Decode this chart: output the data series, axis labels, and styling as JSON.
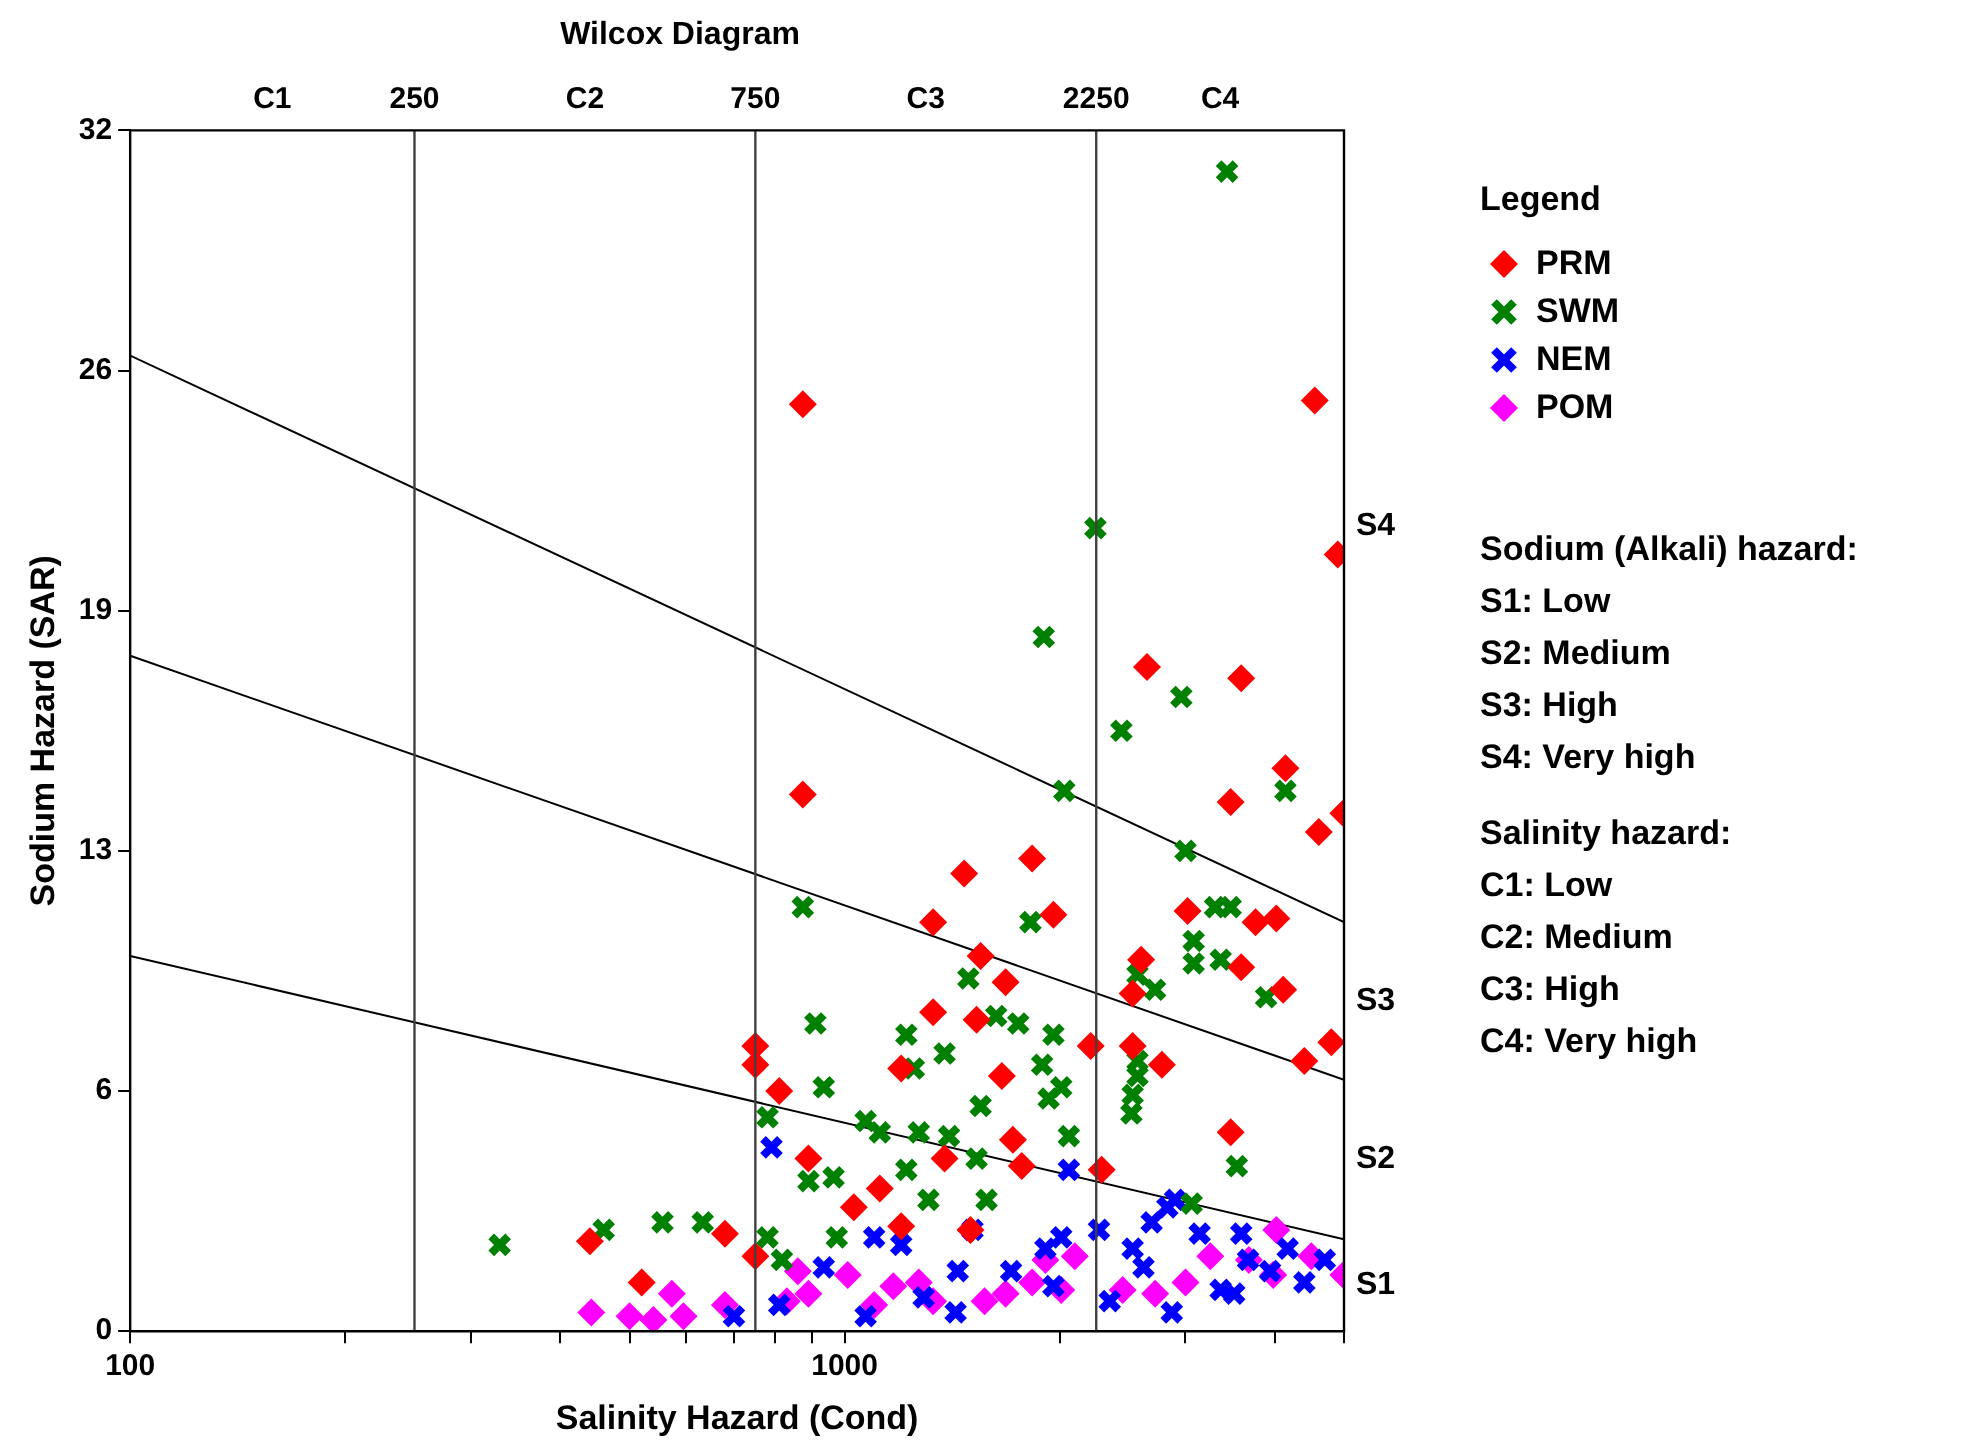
{
  "chart_data": {
    "type": "scatter",
    "title": "Wilcox Diagram",
    "xlabel": "Salinity Hazard (Cond)",
    "ylabel": "Sodium Hazard (SAR)",
    "legend_title": "Legend",
    "log": "x",
    "xlim": [
      100,
      5000
    ],
    "ylim": [
      0,
      32
    ],
    "xticks": [
      100,
      {
        "value": 200,
        "label": null
      },
      {
        "value": 300,
        "label": null
      },
      {
        "value": 400,
        "label": null
      },
      {
        "value": 500,
        "label": null
      },
      {
        "value": 600,
        "label": null
      },
      {
        "value": 700,
        "label": null
      },
      {
        "value": 800,
        "label": null
      },
      {
        "value": 900,
        "label": null
      },
      1000,
      {
        "value": 2000,
        "label": null
      },
      {
        "value": 3000,
        "label": null
      },
      {
        "value": 4000,
        "label": null
      },
      {
        "value": 5000,
        "label": null
      }
    ],
    "yticks": [
      0,
      {
        "value": 6.4,
        "label": "6"
      },
      {
        "value": 12.8,
        "label": "13"
      },
      {
        "value": 19.2,
        "label": "19"
      },
      {
        "value": 25.6,
        "label": "26"
      },
      32
    ],
    "grid": false,
    "legend": "top right",
    "ref_lines": [
      {
        "axis": "x",
        "value": 250,
        "label": "250",
        "color": "#404040"
      },
      {
        "axis": "x",
        "value": 750,
        "label": "750",
        "color": "#404040"
      },
      {
        "axis": "x",
        "value": 2250,
        "label": "2250",
        "color": "#404040"
      }
    ],
    "series": [
      {
        "name": "PRM",
        "color": "#ff0000",
        "marker": "diamond",
        "x": [
          874,
          4550,
          874,
          4900,
          2650,
          3590,
          1330,
          1470,
          1830,
          1550,
          1680,
          1330,
          1530,
          1200,
          1660,
          750,
          750,
          810,
          890,
          1380,
          1720,
          1770,
          1120,
          1030,
          1200,
          1500,
          680,
          750,
          3470,
          4610,
          4990,
          3020,
          1960,
          3760,
          4020,
          2600,
          2530,
          3590,
          4110,
          2210,
          2530,
          2780,
          4800,
          4400,
          3470,
          2290,
          440,
          520,
          4140
        ],
        "values": [
          24.7,
          24.8,
          14.3,
          20.7,
          17.7,
          17.4,
          10.9,
          12.2,
          12.6,
          10.0,
          9.3,
          8.5,
          8.3,
          7.0,
          6.8,
          7.6,
          7.1,
          6.4,
          4.6,
          4.6,
          5.1,
          4.4,
          3.8,
          3.3,
          2.8,
          2.7,
          2.6,
          2.0,
          14.1,
          13.3,
          13.8,
          11.2,
          11.1,
          10.9,
          11.0,
          9.9,
          9.0,
          9.7,
          9.1,
          7.6,
          7.6,
          7.1,
          7.7,
          7.2,
          5.3,
          4.3,
          2.4,
          1.3,
          15.0
        ]
      },
      {
        "name": "SWM",
        "color": "#008000",
        "marker": "cross",
        "x": [
          3430,
          2244,
          1900,
          2960,
          2440,
          2030,
          4140,
          874,
          1820,
          1490,
          1630,
          1750,
          910,
          1220,
          1380,
          1250,
          1890,
          935,
          780,
          1070,
          1120,
          1270,
          1400,
          1550,
          1530,
          1220,
          965,
          890,
          1310,
          1580,
          975,
          780,
          817,
          3000,
          3300,
          3470,
          3080,
          3360,
          3080,
          2570,
          2720,
          3890,
          1960,
          2010,
          1930,
          2570,
          2570,
          2530,
          2520,
          2060,
          3540,
          3060,
          329,
          460,
          556,
          633
        ],
        "values": [
          30.9,
          21.4,
          18.5,
          16.9,
          16.0,
          14.4,
          14.4,
          11.3,
          10.9,
          9.4,
          8.4,
          8.2,
          8.2,
          7.9,
          7.4,
          7.0,
          7.1,
          6.5,
          5.7,
          5.6,
          5.3,
          5.3,
          5.2,
          6.0,
          4.6,
          4.3,
          4.1,
          4.0,
          3.5,
          3.5,
          2.5,
          2.5,
          1.9,
          12.8,
          11.3,
          11.3,
          10.4,
          9.9,
          9.8,
          9.5,
          9.1,
          8.9,
          7.9,
          6.5,
          6.2,
          7.2,
          6.8,
          6.3,
          5.8,
          5.2,
          4.4,
          3.4,
          2.3,
          2.7,
          2.9,
          2.9
        ]
      },
      {
        "name": "NEM",
        "color": "#0000ff",
        "marker": "cross",
        "x": [
          790,
          2060,
          2900,
          1100,
          1200,
          935,
          1440,
          1510,
          1710,
          810,
          700,
          1430,
          1910,
          2270,
          2010,
          2690,
          2830,
          2530,
          2620,
          3140,
          3590,
          3670,
          3360,
          2870,
          2350,
          3510,
          3940,
          1960,
          4170,
          4400,
          4700,
          1070,
          1290
        ],
        "values": [
          4.9,
          4.3,
          3.5,
          2.5,
          2.3,
          1.7,
          1.6,
          2.7,
          1.6,
          0.7,
          0.4,
          0.5,
          2.2,
          2.7,
          2.5,
          2.9,
          3.3,
          2.2,
          1.7,
          2.6,
          2.6,
          1.9,
          1.1,
          0.5,
          0.8,
          1.0,
          1.6,
          1.2,
          2.2,
          1.3,
          1.9,
          0.4,
          0.9
        ]
      },
      {
        "name": "POM",
        "color": "#ff00ff",
        "marker": "diamond",
        "x": [
          442,
          500,
          540,
          573,
          595,
          680,
          860,
          890,
          1010,
          1100,
          1270,
          1330,
          1170,
          1570,
          1680,
          1830,
          1910,
          830,
          2100,
          2010,
          2450,
          2720,
          3000,
          3250,
          3680,
          4020,
          3980,
          4500,
          4990
        ],
        "values": [
          0.5,
          0.4,
          0.3,
          1.0,
          0.4,
          0.7,
          1.6,
          1.0,
          1.5,
          0.7,
          1.3,
          0.8,
          1.2,
          0.8,
          1.0,
          1.3,
          1.9,
          0.8,
          2.0,
          1.1,
          1.1,
          1.0,
          1.3,
          2.0,
          1.9,
          2.7,
          1.5,
          2.0,
          1.5
        ]
      },
      {
        "type": "line",
        "color": "#000000",
        "marker": "none",
        "x": [
          100,
          5000
        ],
        "values": [
          26.0,
          10.9
        ]
      },
      {
        "type": "line",
        "color": "#000000",
        "marker": "none",
        "x": [
          100,
          5000
        ],
        "values": [
          18.0,
          6.7
        ]
      },
      {
        "type": "line",
        "color": "#000000",
        "marker": "none",
        "x": [
          100,
          5000
        ],
        "values": [
          10.0,
          2.45
        ]
      }
    ],
    "annotations": [
      "S4",
      "S3",
      "S2",
      "S1",
      "C1",
      "C2",
      "C3",
      "C4",
      "Sodium (Alkali) hazard:",
      "S1: Low",
      "S2: Medium",
      "S3: High",
      "S4: Very high",
      "Salinity hazard:",
      "C1: Low",
      "C2: Medium",
      "C3: High",
      "C4: Very high"
    ]
  }
}
